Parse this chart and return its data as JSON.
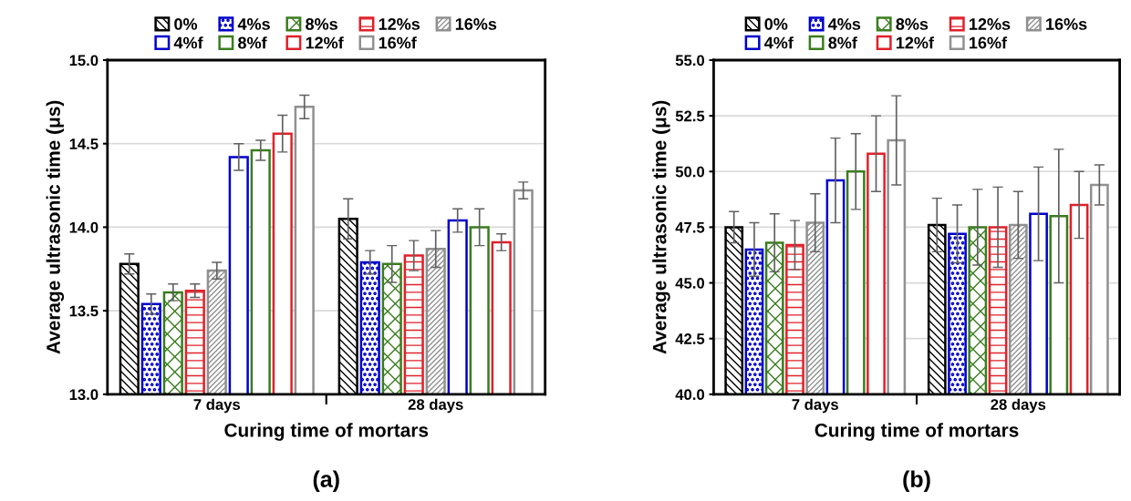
{
  "chart_data": [
    {
      "type": "bar",
      "categories": [
        "7 days",
        "28 days"
      ],
      "xlabel": "Curing time of mortars",
      "ylabel": "Average ultrasonic time (μs)",
      "ylim": [
        13.0,
        15.0
      ],
      "yticks": [
        {
          "value": 13.0,
          "label": "13.0"
        },
        {
          "value": 13.5,
          "label": "13.5"
        },
        {
          "value": 14.0,
          "label": "14.0"
        },
        {
          "value": 14.5,
          "label": "14.5"
        },
        {
          "value": 15.0,
          "label": "15.0"
        }
      ],
      "grid": "y",
      "legend": "top",
      "annotations": [
        "(a)"
      ],
      "series": [
        {
          "name": "0%",
          "color": "#000000",
          "values": [
            13.78,
            14.05
          ],
          "errors": [
            0.06,
            0.12
          ]
        },
        {
          "name": "4%s",
          "color": "#0000cc",
          "values": [
            13.54,
            13.79
          ],
          "errors": [
            0.06,
            0.07
          ]
        },
        {
          "name": "8%s",
          "color": "#3a7d1e",
          "values": [
            13.61,
            13.78
          ],
          "errors": [
            0.05,
            0.11
          ]
        },
        {
          "name": "12%s",
          "color": "#e0202a",
          "values": [
            13.62,
            13.83
          ],
          "errors": [
            0.04,
            0.09
          ]
        },
        {
          "name": "16%s",
          "color": "#909090",
          "values": [
            13.74,
            13.87
          ],
          "errors": [
            0.05,
            0.11
          ]
        },
        {
          "name": "4%f",
          "color": "#0000cc",
          "values": [
            14.42,
            14.04
          ],
          "errors": [
            0.08,
            0.07
          ]
        },
        {
          "name": "8%f",
          "color": "#3a7d1e",
          "values": [
            14.46,
            14.0
          ],
          "errors": [
            0.06,
            0.11
          ]
        },
        {
          "name": "12%f",
          "color": "#e0202a",
          "values": [
            14.56,
            13.91
          ],
          "errors": [
            0.11,
            0.05
          ]
        },
        {
          "name": "16%f",
          "color": "#909090",
          "values": [
            14.72,
            14.22
          ],
          "errors": [
            0.07,
            0.05
          ]
        }
      ]
    },
    {
      "type": "bar",
      "categories": [
        "7 days",
        "28 days"
      ],
      "xlabel": "Curing time of mortars",
      "ylabel": "Average ultrasonic time (μs)",
      "ylim": [
        40.0,
        55.0
      ],
      "yticks": [
        {
          "value": 40.0,
          "label": "40.0"
        },
        {
          "value": 42.5,
          "label": "42.5"
        },
        {
          "value": 45.0,
          "label": "45.0"
        },
        {
          "value": 47.5,
          "label": "47.5"
        },
        {
          "value": 50.0,
          "label": "50.0"
        },
        {
          "value": 52.5,
          "label": "52.5"
        },
        {
          "value": 55.0,
          "label": "55.0"
        }
      ],
      "grid": "y",
      "legend": "top",
      "annotations": [
        "(b)"
      ],
      "series": [
        {
          "name": "0%",
          "color": "#000000",
          "values": [
            47.5,
            47.6
          ],
          "errors": [
            0.7,
            1.2
          ]
        },
        {
          "name": "4%s",
          "color": "#0000cc",
          "values": [
            46.5,
            47.2
          ],
          "errors": [
            1.2,
            1.3
          ]
        },
        {
          "name": "8%s",
          "color": "#3a7d1e",
          "values": [
            46.8,
            47.5
          ],
          "errors": [
            1.3,
            1.7
          ]
        },
        {
          "name": "12%s",
          "color": "#e0202a",
          "values": [
            46.7,
            47.5
          ],
          "errors": [
            1.1,
            1.8
          ]
        },
        {
          "name": "16%s",
          "color": "#909090",
          "values": [
            47.7,
            47.6
          ],
          "errors": [
            1.3,
            1.5
          ]
        },
        {
          "name": "4%f",
          "color": "#0000cc",
          "values": [
            49.6,
            48.1
          ],
          "errors": [
            1.9,
            2.1
          ]
        },
        {
          "name": "8%f",
          "color": "#3a7d1e",
          "values": [
            50.0,
            48.0
          ],
          "errors": [
            1.7,
            3.0
          ]
        },
        {
          "name": "12%f",
          "color": "#e0202a",
          "values": [
            50.8,
            48.5
          ],
          "errors": [
            1.7,
            1.5
          ]
        },
        {
          "name": "16%f",
          "color": "#909090",
          "values": [
            51.4,
            49.4
          ],
          "errors": [
            2.0,
            0.9
          ]
        }
      ]
    }
  ]
}
